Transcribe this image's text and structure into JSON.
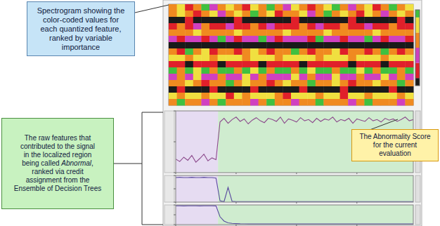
{
  "callouts": [
    {
      "lines": [
        "Spectrogram showing the",
        "color-coded values for",
        "each quantized feature,",
        "ranked by variable",
        "importance"
      ],
      "color": "#c6e4f7"
    },
    {
      "lines": [
        "The raw features that",
        "contributed to the signal",
        "in the localized region",
        "being called Abnormal,",
        "ranked via credit",
        "assignment from the",
        "Ensemble of Decision Trees"
      ],
      "emphasis": "Abnormal",
      "color": "#c8f2c0"
    },
    {
      "lines": [
        "The Abnormality Score",
        "for the current",
        "evaluation"
      ],
      "color": "#fff2a8"
    }
  ],
  "chart_data": [
    {
      "type": "heatmap",
      "tick_labels": false,
      "colors": [
        "#1a1a1a",
        "#e0202a",
        "#d040c0",
        "#f08a20",
        "#f0e040",
        "#40c040"
      ],
      "colorbar": {
        "range": [
          0,
          5
        ]
      },
      "cells": [
        [
          3,
          4,
          1,
          3,
          5,
          2,
          3,
          4,
          3,
          1,
          4,
          3,
          5,
          3,
          2,
          4,
          3,
          1,
          3,
          4,
          5,
          3,
          2,
          3,
          4,
          1,
          3,
          5,
          3,
          4
        ],
        [
          3,
          4,
          3,
          1,
          3,
          4,
          2,
          3,
          4,
          3,
          5,
          3,
          4,
          1,
          3,
          3,
          4,
          2,
          3,
          5,
          3,
          4,
          3,
          1,
          4,
          3,
          2,
          3,
          4,
          3
        ],
        [
          0,
          0,
          1,
          0,
          0,
          0,
          0,
          0,
          1,
          0,
          0,
          0,
          0,
          0,
          0,
          1,
          0,
          0,
          0,
          0,
          0,
          0,
          1,
          0,
          0,
          0,
          0,
          0,
          1,
          0
        ],
        [
          1,
          3,
          1,
          2,
          3,
          1,
          1,
          2,
          1,
          1,
          3,
          1,
          2,
          1,
          1,
          1,
          3,
          1,
          2,
          1,
          1,
          3,
          1,
          1,
          2,
          1,
          1,
          3,
          1,
          1
        ],
        [
          3,
          3,
          3,
          4,
          3,
          3,
          3,
          3,
          4,
          3,
          3,
          3,
          3,
          3,
          4,
          3,
          3,
          3,
          3,
          4,
          3,
          3,
          3,
          3,
          3,
          4,
          3,
          3,
          3,
          3
        ],
        [
          2,
          1,
          2,
          2,
          1,
          2,
          5,
          2,
          1,
          2,
          2,
          5,
          2,
          1,
          2,
          2,
          2,
          1,
          5,
          2,
          2,
          1,
          2,
          2,
          5,
          2,
          1,
          2,
          2,
          1
        ],
        [
          0,
          0,
          0,
          0,
          0,
          0,
          0,
          0,
          0,
          0,
          0,
          0,
          0,
          0,
          0,
          0,
          0,
          0,
          0,
          0,
          0,
          0,
          0,
          0,
          0,
          0,
          0,
          0,
          0,
          0
        ],
        [
          3,
          1,
          5,
          3,
          4,
          1,
          3,
          3,
          1,
          3,
          4,
          3,
          1,
          3,
          3,
          5,
          3,
          1,
          3,
          3,
          4,
          1,
          3,
          3,
          1,
          3,
          5,
          3,
          1,
          3
        ],
        [
          4,
          4,
          3,
          4,
          4,
          3,
          4,
          4,
          4,
          3,
          4,
          4,
          4,
          3,
          4,
          4,
          4,
          4,
          3,
          4,
          4,
          4,
          3,
          4,
          4,
          4,
          3,
          4,
          4,
          4
        ],
        [
          1,
          1,
          0,
          1,
          1,
          1,
          0,
          1,
          1,
          1,
          1,
          0,
          1,
          1,
          1,
          1,
          0,
          1,
          1,
          1,
          1,
          1,
          0,
          1,
          1,
          1,
          0,
          1,
          1,
          1
        ],
        [
          5,
          3,
          5,
          4,
          5,
          3,
          5,
          5,
          3,
          5,
          4,
          5,
          3,
          5,
          5,
          3,
          5,
          4,
          5,
          5,
          3,
          5,
          5,
          4,
          5,
          3,
          5,
          5,
          3,
          5
        ],
        [
          2,
          3,
          2,
          4,
          2,
          2,
          3,
          2,
          2,
          4,
          2,
          3,
          2,
          2,
          2,
          4,
          2,
          3,
          2,
          2,
          4,
          2,
          2,
          3,
          2,
          2,
          4,
          2,
          3,
          2
        ],
        [
          3,
          3,
          4,
          3,
          1,
          3,
          3,
          5,
          3,
          4,
          3,
          3,
          1,
          3,
          4,
          3,
          3,
          5,
          3,
          3,
          4,
          3,
          1,
          3,
          3,
          4,
          3,
          3,
          5,
          3
        ],
        [
          0,
          1,
          0,
          0,
          0,
          1,
          0,
          0,
          0,
          0,
          1,
          0,
          0,
          0,
          0,
          0,
          1,
          0,
          0,
          0,
          0,
          1,
          0,
          0,
          0,
          0,
          0,
          1,
          0,
          0
        ],
        [
          4,
          3,
          4,
          4,
          3,
          4,
          4,
          1,
          4,
          3,
          4,
          4,
          4,
          3,
          1,
          4,
          4,
          4,
          3,
          4,
          4,
          1,
          4,
          4,
          3,
          4,
          4,
          4,
          3,
          4
        ],
        [
          3,
          5,
          3,
          3,
          2,
          3,
          5,
          3,
          3,
          3,
          2,
          3,
          5,
          3,
          3,
          2,
          3,
          3,
          5,
          3,
          3,
          3,
          2,
          3,
          5,
          3,
          3,
          3,
          2,
          3
        ]
      ]
    },
    {
      "type": "line",
      "tick_labels": false,
      "x": [
        0,
        1,
        2,
        3,
        4,
        5,
        6,
        7,
        8,
        9,
        10,
        11,
        12,
        13,
        14,
        15,
        16,
        17,
        18,
        19,
        20,
        21,
        22,
        23,
        24,
        25,
        26,
        27,
        28,
        29,
        30,
        31,
        32,
        33,
        34,
        35,
        36,
        37,
        38,
        39,
        40,
        41,
        42,
        43,
        44,
        45,
        46,
        47,
        48,
        49,
        50,
        51,
        52,
        53,
        54,
        55,
        56,
        57,
        58,
        59
      ],
      "xlim": [
        0,
        59
      ],
      "xticks": [
        0,
        15,
        30,
        45
      ],
      "ylim": [
        0,
        1
      ],
      "yticks": [
        0,
        0.5,
        1
      ],
      "regions": [
        {
          "from": 0,
          "to": 10.5,
          "color": "#e6dcf2"
        },
        {
          "from": 10.5,
          "to": 59,
          "color": "#cfeccf"
        }
      ],
      "series": [
        {
          "color": "#8c4a8c",
          "values": [
            0.22,
            0.18,
            0.25,
            0.2,
            0.28,
            0.17,
            0.23,
            0.3,
            0.19,
            0.24,
            0.21,
            0.82,
            0.88,
            0.8,
            0.86,
            0.9,
            0.83,
            0.87,
            0.79,
            0.85,
            0.89,
            0.84,
            0.81,
            0.88,
            0.86,
            0.83,
            0.9,
            0.8,
            0.87,
            0.85,
            0.82,
            0.89,
            0.84,
            0.86,
            0.81,
            0.88,
            0.83,
            0.87,
            0.85,
            0.9,
            0.82,
            0.86,
            0.84,
            0.88,
            0.8,
            0.87,
            0.85,
            0.83,
            0.89,
            0.84,
            0.86,
            0.82,
            0.88,
            0.85,
            0.87,
            0.83,
            0.86,
            0.9,
            0.84,
            0.86
          ]
        }
      ]
    },
    {
      "type": "line",
      "tick_labels": false,
      "x": [
        0,
        1,
        2,
        3,
        4,
        5,
        6,
        7,
        8,
        9,
        10,
        11,
        12,
        13,
        14,
        15,
        16,
        17,
        18,
        19,
        20,
        21,
        22,
        23,
        24,
        25,
        26,
        27,
        28,
        29,
        30,
        31,
        32,
        33,
        34,
        35,
        36,
        37,
        38,
        39,
        40,
        41,
        42,
        43,
        44,
        45,
        46,
        47,
        48,
        49,
        50,
        51,
        52,
        53,
        54,
        55,
        56,
        57,
        58,
        59
      ],
      "xlim": [
        0,
        59
      ],
      "xticks": [
        0,
        15,
        30,
        45
      ],
      "ylim": [
        0,
        1
      ],
      "yticks": [
        0,
        0.5,
        1
      ],
      "regions": [
        {
          "from": 0,
          "to": 10.5,
          "color": "#e6dcf2"
        },
        {
          "from": 10.5,
          "to": 59,
          "color": "#cfeccf"
        }
      ],
      "series": [
        {
          "color": "#5a4aa0",
          "values": [
            0.92,
            0.93,
            0.92,
            0.92,
            0.93,
            0.92,
            0.92,
            0.93,
            0.92,
            0.92,
            0.9,
            0.05,
            0.02,
            0.55,
            0.03,
            0.02,
            0.02,
            0.02,
            0.02,
            0.02,
            0.02,
            0.02,
            0.02,
            0.02,
            0.02,
            0.02,
            0.02,
            0.02,
            0.02,
            0.02,
            0.02,
            0.02,
            0.02,
            0.02,
            0.02,
            0.02,
            0.02,
            0.02,
            0.02,
            0.02,
            0.02,
            0.02,
            0.02,
            0.02,
            0.02,
            0.02,
            0.02,
            0.02,
            0.02,
            0.02,
            0.02,
            0.02,
            0.02,
            0.02,
            0.02,
            0.02,
            0.02,
            0.02,
            0.02,
            0.02
          ]
        }
      ]
    },
    {
      "type": "line",
      "tick_labels": false,
      "x": [
        0,
        1,
        2,
        3,
        4,
        5,
        6,
        7,
        8,
        9,
        10,
        11,
        12,
        13,
        14,
        15,
        16,
        17,
        18,
        19,
        20,
        21,
        22,
        23,
        24,
        25,
        26,
        27,
        28,
        29,
        30,
        31,
        32,
        33,
        34,
        35,
        36,
        37,
        38,
        39,
        40,
        41,
        42,
        43,
        44,
        45,
        46,
        47,
        48,
        49,
        50,
        51,
        52,
        53,
        54,
        55,
        56,
        57,
        58,
        59
      ],
      "xlim": [
        0,
        59
      ],
      "xticks": [
        0,
        15,
        30,
        45
      ],
      "ylim": [
        0,
        1
      ],
      "yticks": [
        0,
        0.5,
        1
      ],
      "regions": [
        {
          "from": 0,
          "to": 10.5,
          "color": "#e6dcf2"
        },
        {
          "from": 10.5,
          "to": 59,
          "color": "#cfeccf"
        }
      ],
      "series": [
        {
          "color": "#5a4aa0",
          "values": [
            0.96,
            0.96,
            0.95,
            0.96,
            0.96,
            0.96,
            0.95,
            0.96,
            0.96,
            0.96,
            0.95,
            0.4,
            0.18,
            0.09,
            0.06,
            0.05,
            0.04,
            0.035,
            0.03,
            0.03,
            0.03,
            0.03,
            0.03,
            0.03,
            0.03,
            0.03,
            0.03,
            0.03,
            0.03,
            0.03,
            0.03,
            0.03,
            0.03,
            0.03,
            0.03,
            0.03,
            0.03,
            0.03,
            0.03,
            0.03,
            0.03,
            0.03,
            0.03,
            0.03,
            0.03,
            0.03,
            0.03,
            0.03,
            0.03,
            0.03,
            0.03,
            0.03,
            0.03,
            0.03,
            0.03,
            0.03,
            0.03,
            0.03,
            0.03,
            0.03
          ]
        }
      ]
    }
  ]
}
